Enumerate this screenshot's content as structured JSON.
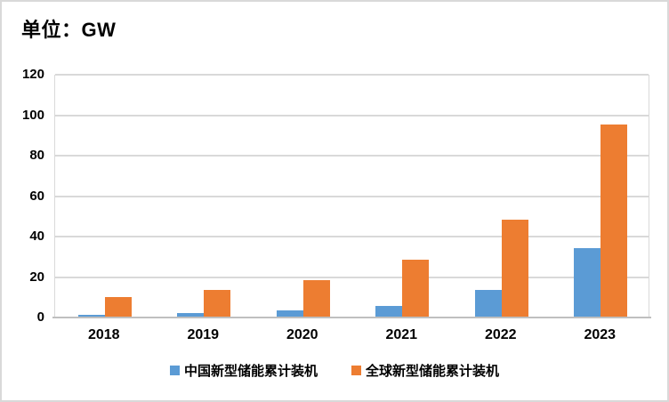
{
  "header": {
    "title": "单位：GW"
  },
  "chart_data": {
    "type": "bar",
    "title": "单位：GW",
    "categories": [
      "2018",
      "2019",
      "2020",
      "2021",
      "2022",
      "2023"
    ],
    "series": [
      {
        "name": "中国新型储能累计装机",
        "color": "#5B9BD5",
        "values": [
          1.1,
          2.2,
          3.3,
          5.9,
          13.5,
          34.5
        ]
      },
      {
        "name": "全球新型储能累计装机",
        "color": "#ED7D31",
        "values": [
          10.2,
          13.7,
          18.3,
          28.6,
          48.5,
          95.3
        ]
      }
    ],
    "xlabel": "",
    "ylabel": "",
    "ylim": [
      0,
      120
    ],
    "yticks": [
      0,
      20,
      40,
      60,
      80,
      100,
      120
    ],
    "grid": true,
    "legend_position": "bottom",
    "colors": {
      "gridline": "#D9D9D9",
      "axis_line": "#BFBFBF",
      "frame_border": "#D9D9D9",
      "text": "#000000",
      "background": "#FFFFFF"
    }
  }
}
